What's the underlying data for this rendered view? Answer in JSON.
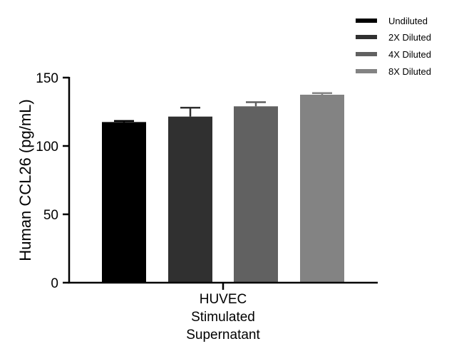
{
  "chart_data": {
    "type": "bar",
    "title": "",
    "xlabel": "",
    "ylabel": "Human CCL26 (pg/mL)",
    "ylim": [
      0,
      150
    ],
    "yticks": [
      0,
      50,
      100,
      150
    ],
    "category_lines": [
      "HUVEC",
      "Stimulated",
      "Supernatant"
    ],
    "categories": [
      "HUVEC Stimulated Supernatant"
    ],
    "legend_position": "top-right",
    "grid": false,
    "series": [
      {
        "name": "Undiluted",
        "values": [
          117.5
        ],
        "error": [
          0.8
        ],
        "color": "#000000"
      },
      {
        "name": "2X Diluted",
        "values": [
          121.5
        ],
        "error": [
          6.5
        ],
        "color": "#303030"
      },
      {
        "name": "4X Diluted",
        "values": [
          129
        ],
        "error": [
          3.0
        ],
        "color": "#616161"
      },
      {
        "name": "8X Diluted",
        "values": [
          137.5
        ],
        "error": [
          1.2
        ],
        "color": "#838383"
      }
    ]
  }
}
